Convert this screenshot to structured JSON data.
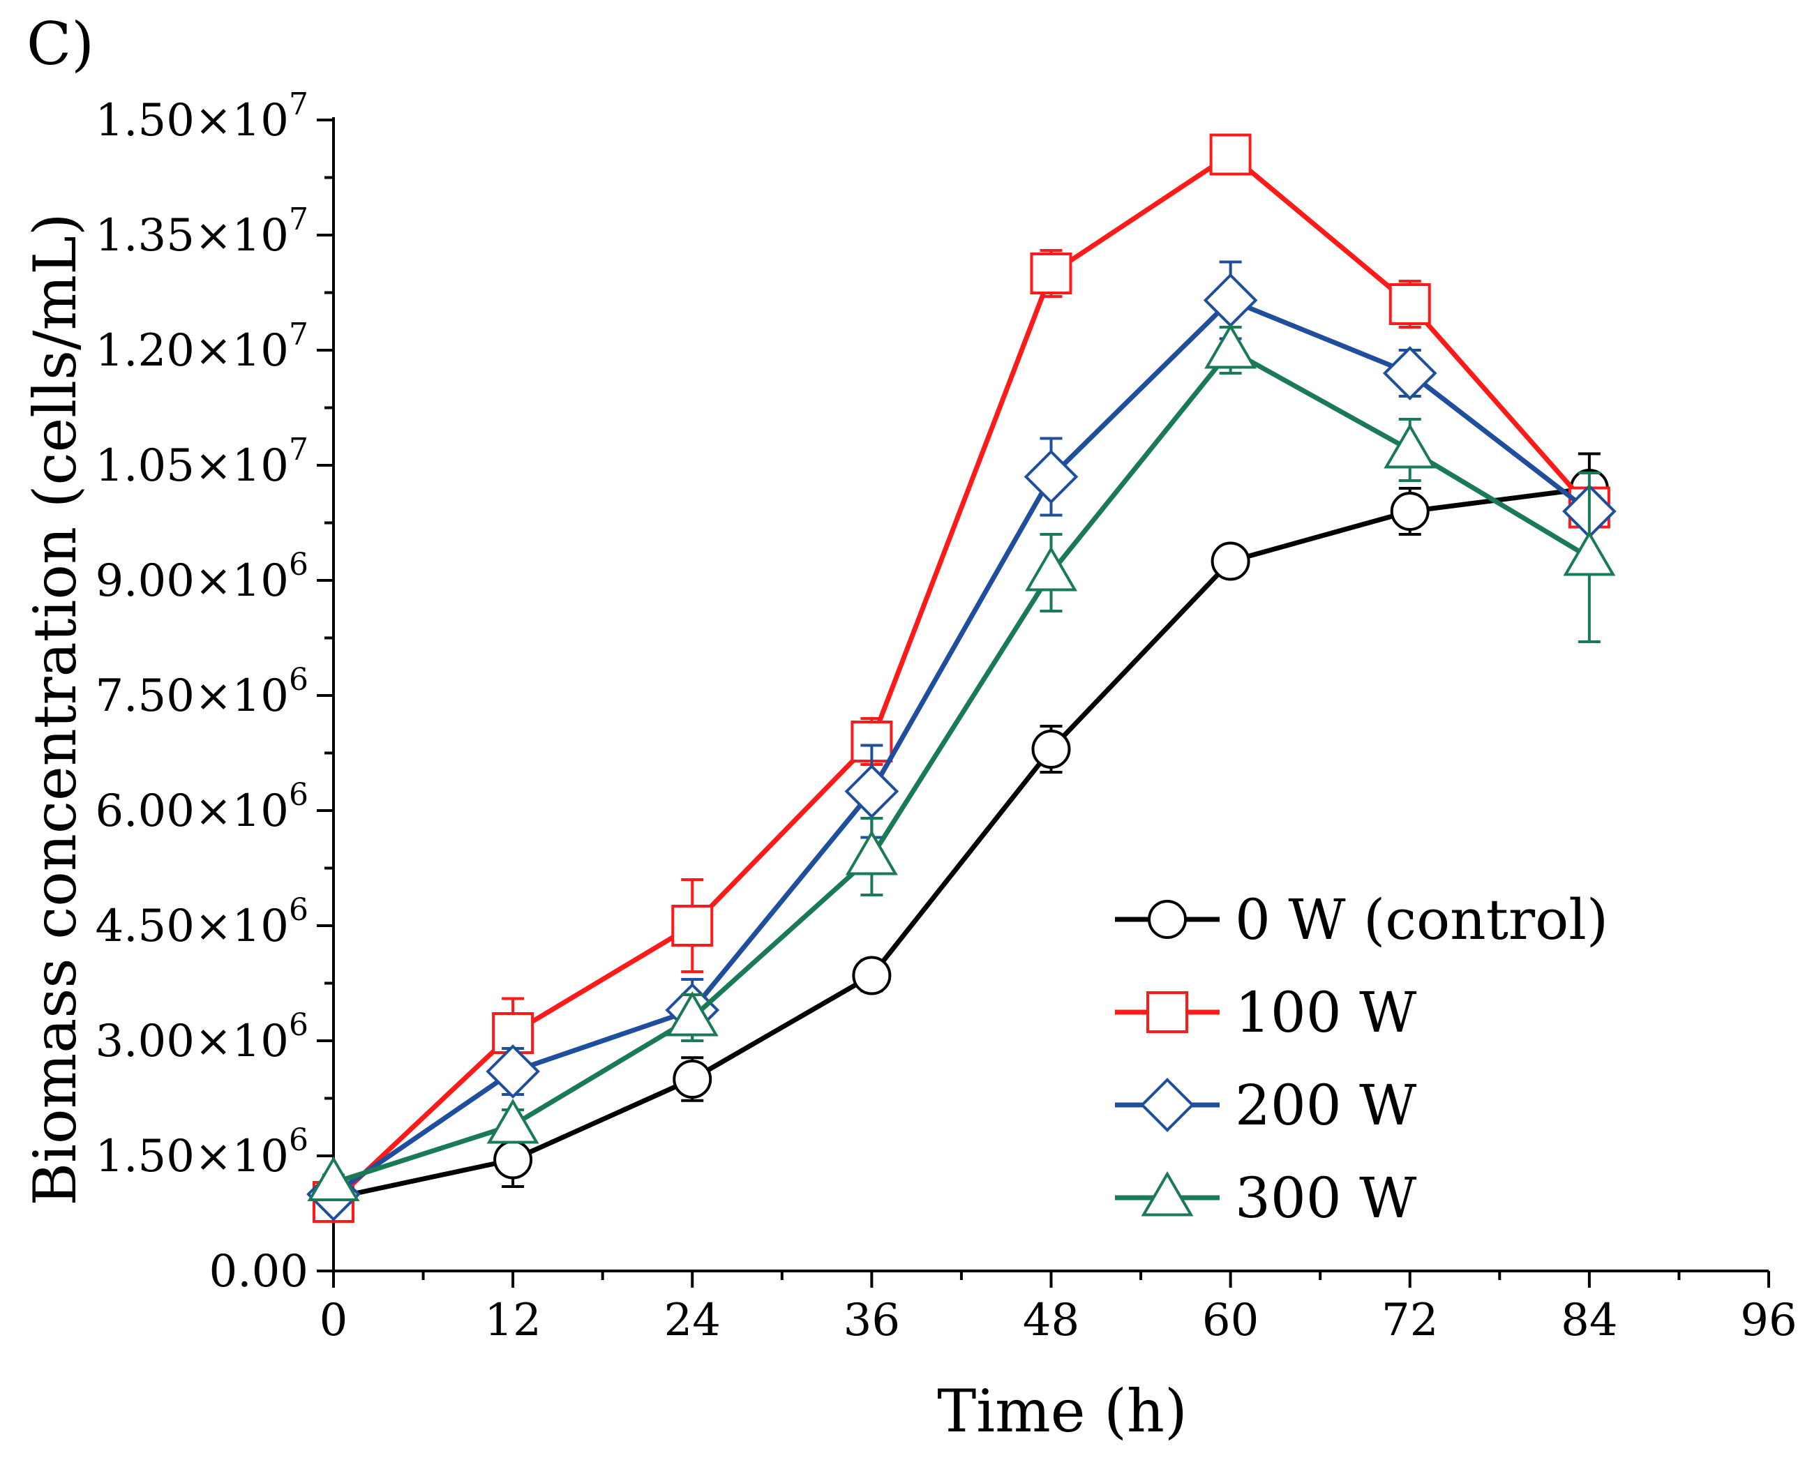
{
  "panel_label": "C)",
  "chart_data": {
    "type": "line",
    "title": "",
    "xlabel": "Time (h)",
    "ylabel": "Biomass concentration (cells/mL)",
    "xlim": [
      0,
      96
    ],
    "ylim": [
      0,
      15000000
    ],
    "x_ticks": [
      0,
      12,
      24,
      36,
      48,
      60,
      72,
      84,
      96
    ],
    "x_tick_labels": [
      "0",
      "12",
      "24",
      "36",
      "48",
      "60",
      "72",
      "84",
      "96"
    ],
    "y_ticks": [
      0,
      1500000,
      3000000,
      4500000,
      6000000,
      7500000,
      9000000,
      10500000,
      12000000,
      13500000,
      15000000
    ],
    "y_tick_labels": [
      {
        "mantissa": "0.00",
        "exp": ""
      },
      {
        "mantissa": "1.50×10",
        "exp": "6"
      },
      {
        "mantissa": "3.00×10",
        "exp": "6"
      },
      {
        "mantissa": "4.50×10",
        "exp": "6"
      },
      {
        "mantissa": "6.00×10",
        "exp": "6"
      },
      {
        "mantissa": "7.50×10",
        "exp": "6"
      },
      {
        "mantissa": "9.00×10",
        "exp": "6"
      },
      {
        "mantissa": "1.05×10",
        "exp": "7"
      },
      {
        "mantissa": "1.20×10",
        "exp": "7"
      },
      {
        "mantissa": "1.35×10",
        "exp": "7"
      },
      {
        "mantissa": "1.50×10",
        "exp": "7"
      }
    ],
    "legend_position": "bottom-right",
    "x": [
      0,
      12,
      24,
      36,
      48,
      60,
      72,
      84
    ],
    "series": [
      {
        "name": "0 W (control)",
        "color": "#000000",
        "marker": "circle",
        "values": [
          950000,
          1450000,
          2500000,
          3850000,
          6800000,
          9250000,
          9900000,
          10200000
        ],
        "errors": [
          60000,
          350000,
          280000,
          200000,
          300000,
          100000,
          300000,
          450000
        ]
      },
      {
        "name": "100 W",
        "color": "#ff1a1a",
        "marker": "square",
        "values": [
          900000,
          3100000,
          4500000,
          6900000,
          13000000,
          14550000,
          12600000,
          9950000
        ],
        "errors": [
          80000,
          450000,
          600000,
          300000,
          300000,
          250000,
          300000,
          200000
        ]
      },
      {
        "name": "200 W",
        "color": "#1f4e9c",
        "marker": "diamond",
        "values": [
          1000000,
          2600000,
          3400000,
          6250000,
          10350000,
          12650000,
          11700000,
          9900000
        ],
        "errors": [
          100000,
          300000,
          400000,
          600000,
          500000,
          500000,
          300000,
          200000
        ]
      },
      {
        "name": "300 W",
        "color": "#1a7a55",
        "marker": "triangle",
        "values": [
          1150000,
          1900000,
          3300000,
          5400000,
          9100000,
          12000000,
          10700000,
          9300000
        ],
        "errors": [
          100000,
          200000,
          300000,
          500000,
          500000,
          300000,
          400000,
          1100000
        ]
      }
    ]
  }
}
